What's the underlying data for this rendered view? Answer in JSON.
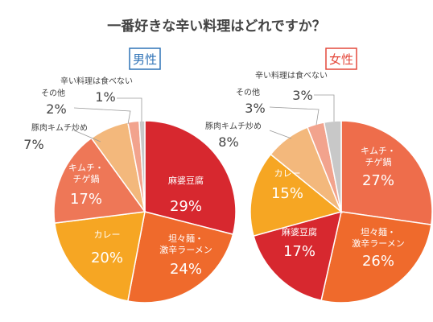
{
  "title": "一番好きな辛い料理はどれですか？",
  "chart_data": [
    {
      "type": "pie",
      "gender_label": "男性",
      "accent": "#2f73b7",
      "slices": [
        {
          "label": "麻婆豆腐",
          "value": 29,
          "color": "#d7282f"
        },
        {
          "label": "坦々麺・\n激辛ラーメン",
          "value": 24,
          "color": "#ef6a2c"
        },
        {
          "label": "カレー",
          "value": 20,
          "color": "#f6a623"
        },
        {
          "label": "キムチ・\nチゲ鍋",
          "value": 17,
          "color": "#ee7757"
        },
        {
          "label": "豚肉キムチ炒め",
          "value": 7,
          "color": "#f3b87c"
        },
        {
          "label": "その他",
          "value": 2,
          "color": "#f2a38d"
        },
        {
          "label": "辛い料理は食べない",
          "value": 1,
          "color": "#c8c8c8"
        }
      ]
    },
    {
      "type": "pie",
      "gender_label": "女性",
      "accent": "#e4483b",
      "slices": [
        {
          "label": "キムチ・\nチゲ鍋",
          "value": 27,
          "color": "#ee6d4b"
        },
        {
          "label": "坦々麺・\n激辛ラーメン",
          "value": 26,
          "color": "#ef6a2c"
        },
        {
          "label": "麻婆豆腐",
          "value": 17,
          "color": "#d7282f"
        },
        {
          "label": "カレー",
          "value": 15,
          "color": "#f6a623"
        },
        {
          "label": "豚肉キムチ炒め",
          "value": 8,
          "color": "#f3b87c"
        },
        {
          "label": "その他",
          "value": 3,
          "color": "#f2a38d"
        },
        {
          "label": "辛い料理は食べない",
          "value": 3,
          "color": "#c8c8c8"
        }
      ]
    }
  ]
}
